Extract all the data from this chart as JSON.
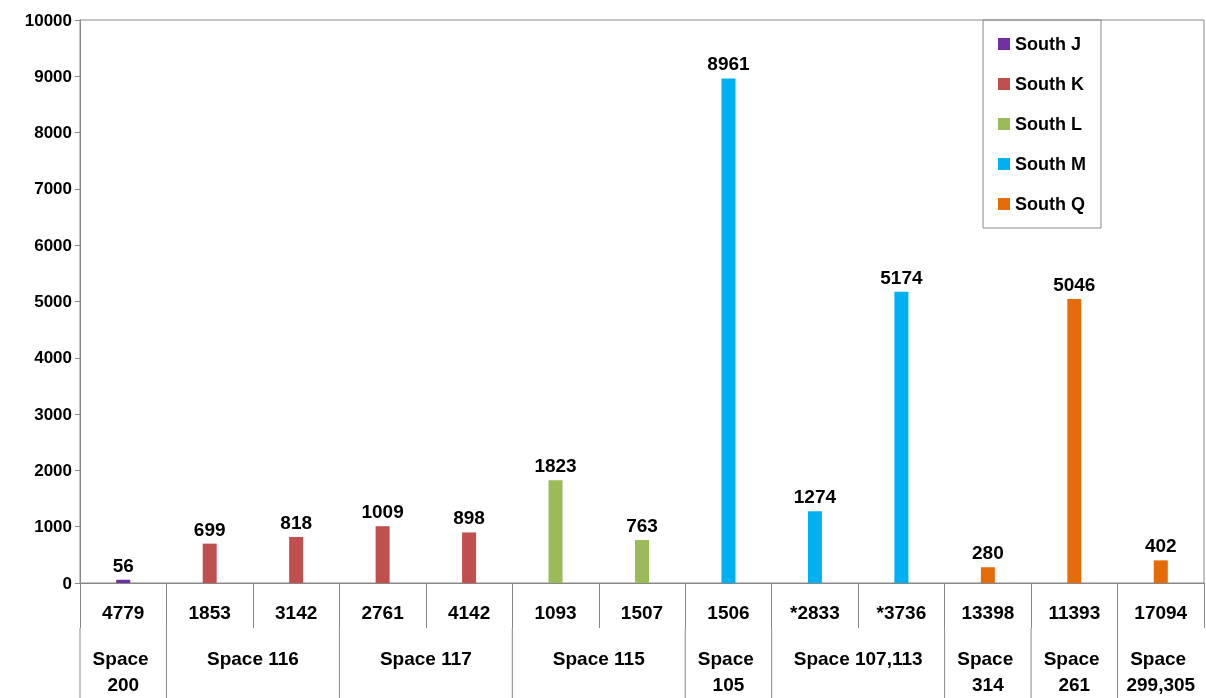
{
  "chart_data": {
    "type": "bar",
    "categories": [
      "4779",
      "1853",
      "3142",
      "2761",
      "4142",
      "1093",
      "1507",
      "1506",
      "*2833",
      "*3736",
      "13398",
      "11393",
      "17094"
    ],
    "series": [
      {
        "name": "South J",
        "color": "#7030a0",
        "values": [
          56,
          null,
          null,
          null,
          null,
          null,
          null,
          null,
          null,
          null,
          null,
          null,
          null
        ]
      },
      {
        "name": "South K",
        "color": "#c0504d",
        "values": [
          null,
          699,
          818,
          1009,
          898,
          null,
          null,
          null,
          null,
          null,
          null,
          null,
          null
        ]
      },
      {
        "name": "South L",
        "color": "#9bbb59",
        "values": [
          null,
          null,
          null,
          null,
          null,
          1823,
          763,
          null,
          null,
          null,
          null,
          null,
          null
        ]
      },
      {
        "name": "South M",
        "color": "#00b0f0",
        "values": [
          null,
          null,
          null,
          null,
          null,
          null,
          null,
          8961,
          1274,
          5174,
          null,
          null,
          null
        ]
      },
      {
        "name": "South Q",
        "color": "#e36c09",
        "values": [
          null,
          null,
          null,
          null,
          null,
          null,
          null,
          null,
          null,
          null,
          280,
          5046,
          402
        ]
      }
    ],
    "ylim": [
      0,
      10000
    ],
    "yticks": [
      0,
      1000,
      2000,
      3000,
      4000,
      5000,
      6000,
      7000,
      8000,
      9000,
      10000
    ],
    "grid": false,
    "legend": "top right",
    "data_labels": true,
    "annotations": [
      "Space 200",
      "Space 116",
      "Space 117",
      "Space 115",
      "Space 105",
      "Space 107,113",
      "Space 314",
      "Space 261",
      "Space 299,305"
    ]
  }
}
